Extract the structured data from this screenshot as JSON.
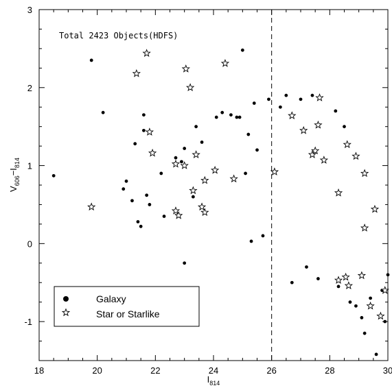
{
  "chart_data": {
    "type": "scatter",
    "annotation": "Total 2423 Objects(HDFS)",
    "xlabel": {
      "main": "I",
      "sub": "814"
    },
    "ylabel": {
      "main1": "V",
      "sub1": "606",
      "sep": "−",
      "main2": "I",
      "sub2": "814"
    },
    "xlim": [
      18,
      30
    ],
    "ylim": [
      -1.5,
      3
    ],
    "xticks": [
      18,
      20,
      22,
      24,
      26,
      28,
      30
    ],
    "yticks": [
      -1,
      0,
      1,
      2,
      3
    ],
    "grid": false,
    "reference_line": {
      "x": 26,
      "style": "dashed"
    },
    "legend": {
      "placement": "bottom-left",
      "entries": [
        {
          "marker": "dot",
          "label": "Galaxy"
        },
        {
          "marker": "star",
          "label": "Star or Starlike"
        }
      ]
    },
    "series": [
      {
        "name": "Galaxy",
        "marker": "dot",
        "points": [
          [
            18.5,
            0.87
          ],
          [
            19.8,
            2.35
          ],
          [
            20.2,
            1.68
          ],
          [
            20.9,
            0.7
          ],
          [
            21.0,
            0.8
          ],
          [
            21.2,
            0.55
          ],
          [
            21.3,
            1.28
          ],
          [
            21.4,
            0.28
          ],
          [
            21.5,
            0.22
          ],
          [
            21.6,
            1.65
          ],
          [
            21.6,
            1.45
          ],
          [
            21.7,
            0.62
          ],
          [
            21.8,
            0.5
          ],
          [
            22.2,
            0.9
          ],
          [
            22.3,
            0.35
          ],
          [
            22.7,
            1.1
          ],
          [
            22.9,
            1.05
          ],
          [
            23.0,
            1.22
          ],
          [
            23.0,
            -0.25
          ],
          [
            23.3,
            0.6
          ],
          [
            23.4,
            1.5
          ],
          [
            23.6,
            1.3
          ],
          [
            24.1,
            1.62
          ],
          [
            24.3,
            1.68
          ],
          [
            24.6,
            1.65
          ],
          [
            24.8,
            1.62
          ],
          [
            24.9,
            1.62
          ],
          [
            25.0,
            2.48
          ],
          [
            25.2,
            1.4
          ],
          [
            25.4,
            1.8
          ],
          [
            25.5,
            1.2
          ],
          [
            25.3,
            0.03
          ],
          [
            25.1,
            0.9
          ],
          [
            25.7,
            0.1
          ],
          [
            25.9,
            1.85
          ],
          [
            26.3,
            1.75
          ],
          [
            26.5,
            1.9
          ],
          [
            26.7,
            -0.5
          ],
          [
            27.0,
            1.85
          ],
          [
            27.4,
            1.9
          ],
          [
            28.2,
            1.7
          ],
          [
            28.5,
            1.5
          ],
          [
            29.2,
            -1.15
          ],
          [
            29.6,
            -1.42
          ],
          [
            29.1,
            -0.95
          ],
          [
            28.9,
            -0.8
          ],
          [
            29.4,
            -0.7
          ],
          [
            29.8,
            -0.6
          ],
          [
            29.9,
            -1.0
          ],
          [
            30.0,
            -0.4
          ],
          [
            28.7,
            -0.75
          ],
          [
            28.3,
            -0.55
          ],
          [
            27.6,
            -0.45
          ],
          [
            27.2,
            -0.3
          ]
        ]
      },
      {
        "name": "Star or Starlike",
        "marker": "star",
        "points": [
          [
            19.8,
            0.47
          ],
          [
            21.35,
            2.18
          ],
          [
            21.7,
            2.44
          ],
          [
            21.8,
            1.43
          ],
          [
            21.9,
            1.16
          ],
          [
            22.7,
            1.02
          ],
          [
            22.7,
            0.42
          ],
          [
            22.8,
            0.36
          ],
          [
            23.0,
            1.0
          ],
          [
            23.05,
            2.24
          ],
          [
            23.2,
            2.0
          ],
          [
            23.3,
            0.68
          ],
          [
            23.4,
            1.14
          ],
          [
            23.6,
            0.47
          ],
          [
            23.7,
            0.4
          ],
          [
            23.7,
            0.81
          ],
          [
            24.05,
            0.94
          ],
          [
            24.4,
            2.31
          ],
          [
            24.7,
            0.83
          ],
          [
            26.1,
            0.92
          ],
          [
            26.7,
            1.64
          ],
          [
            27.1,
            1.45
          ],
          [
            27.4,
            1.14
          ],
          [
            27.5,
            1.19
          ],
          [
            27.6,
            1.52
          ],
          [
            27.65,
            1.87
          ],
          [
            27.8,
            1.07
          ],
          [
            28.3,
            0.65
          ],
          [
            28.6,
            1.27
          ],
          [
            28.9,
            1.12
          ],
          [
            29.2,
            0.9
          ],
          [
            29.55,
            0.44
          ],
          [
            28.3,
            -0.47
          ],
          [
            28.55,
            -0.43
          ],
          [
            28.65,
            -0.54
          ],
          [
            29.1,
            -0.41
          ],
          [
            29.4,
            -0.8
          ],
          [
            29.75,
            -0.93
          ],
          [
            29.9,
            -0.6
          ],
          [
            29.2,
            0.2
          ]
        ]
      }
    ]
  }
}
